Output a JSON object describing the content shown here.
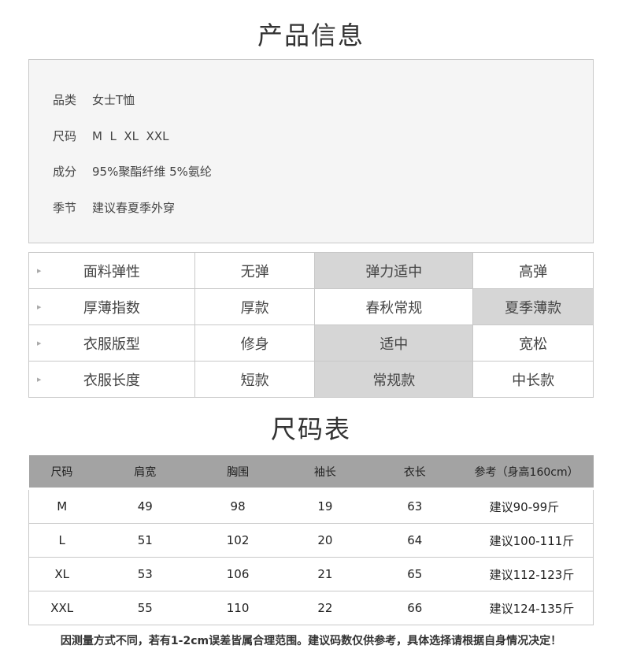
{
  "product_title": "产品信息",
  "info": [
    {
      "key": "品类",
      "value": "女士T恤"
    },
    {
      "key": "尺码",
      "value": "M  L  XL  XXL"
    },
    {
      "key": "成分",
      "value": "95%聚酯纤维 5%氨纶"
    },
    {
      "key": "季节",
      "value": "建议春夏季外穿"
    }
  ],
  "attributes": [
    {
      "label": "面料弹性",
      "options": [
        "无弹",
        "弹力适中",
        "高弹"
      ],
      "selected": 1
    },
    {
      "label": "厚薄指数",
      "options": [
        "厚款",
        "春秋常规",
        "夏季薄款"
      ],
      "selected": 2
    },
    {
      "label": "衣服版型",
      "options": [
        "修身",
        "适中",
        "宽松"
      ],
      "selected": 1
    },
    {
      "label": "衣服长度",
      "options": [
        "短款",
        "常规款",
        "中长款"
      ],
      "selected": 1
    }
  ],
  "selected_color": "#d6d6d6",
  "size_title": "尺码表",
  "size_table": {
    "headers": [
      "尺码",
      "肩宽",
      "胸围",
      "袖长",
      "衣长",
      "参考（身高160cm）"
    ],
    "rows": [
      [
        "M",
        "49",
        "98",
        "19",
        "63",
        "建议90-99斤"
      ],
      [
        "L",
        "51",
        "102",
        "20",
        "64",
        "建议100-111斤"
      ],
      [
        "XL",
        "53",
        "106",
        "21",
        "65",
        "建议112-123斤"
      ],
      [
        "XXL",
        "55",
        "110",
        "22",
        "66",
        "建议124-135斤"
      ]
    ]
  },
  "note": "因测量方式不同，若有1-2cm误差皆属合理范围。建议码数仅供参考，具体选择请根据自身情况决定！"
}
